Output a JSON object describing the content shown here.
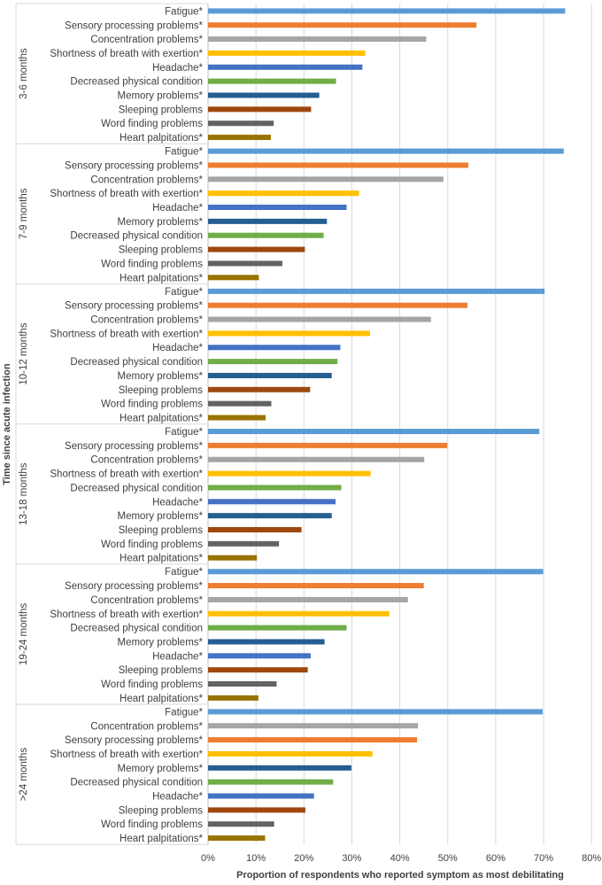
{
  "chart_data": {
    "type": "bar",
    "orientation": "horizontal",
    "xlabel": "Proportion of respondents who reported symptom as most debilitating",
    "ylabel": "Time since acute infection",
    "xlim": [
      0,
      80
    ],
    "xticks": [
      "0%",
      "10%",
      "20%",
      "30%",
      "40%",
      "50%",
      "60%",
      "70%",
      "80%"
    ],
    "grid": "vertical",
    "colors": {
      "Fatigue*": "#5B9BD5",
      "Sensory processing problems*": "#ED7D31",
      "Concentration problems*": "#A5A5A5",
      "Shortness of breath with exertion*": "#FFC000",
      "Headache*": "#4472C4",
      "Decreased physical condition": "#70AD47",
      "Memory problems*": "#255E91",
      "Sleeping problems": "#9E480E",
      "Word finding problems": "#636363",
      "Heart palpitations*": "#997300"
    },
    "groups": [
      {
        "name": "3-6 months",
        "items": [
          {
            "label": "Fatigue*",
            "value": 74.5
          },
          {
            "label": "Sensory processing problems*",
            "value": 56
          },
          {
            "label": "Concentration problems*",
            "value": 45.5
          },
          {
            "label": "Shortness of breath with exertion*",
            "value": 32.8
          },
          {
            "label": "Headache*",
            "value": 32.2
          },
          {
            "label": "Decreased physical condition",
            "value": 26.7
          },
          {
            "label": "Memory problems*",
            "value": 23.2
          },
          {
            "label": "Sleeping problems",
            "value": 21.5
          },
          {
            "label": "Word finding problems",
            "value": 13.7
          },
          {
            "label": "Heart palpitations*",
            "value": 13.1
          }
        ]
      },
      {
        "name": "7-9 months",
        "items": [
          {
            "label": "Fatigue*",
            "value": 74.2
          },
          {
            "label": "Sensory processing problems*",
            "value": 54.3
          },
          {
            "label": "Concentration problems*",
            "value": 49.1
          },
          {
            "label": "Shortness of breath with exertion*",
            "value": 31.5
          },
          {
            "label": "Headache*",
            "value": 28.9
          },
          {
            "label": "Memory problems*",
            "value": 24.8
          },
          {
            "label": "Decreased physical condition",
            "value": 24.1
          },
          {
            "label": "Sleeping problems",
            "value": 20.2
          },
          {
            "label": "Word finding problems",
            "value": 15.5
          },
          {
            "label": "Heart palpitations*",
            "value": 10.6
          }
        ]
      },
      {
        "name": "10-12 months",
        "items": [
          {
            "label": "Fatigue*",
            "value": 70.2
          },
          {
            "label": "Sensory processing problems*",
            "value": 54.1
          },
          {
            "label": "Concentration problems*",
            "value": 46.5
          },
          {
            "label": "Shortness of breath with exertion*",
            "value": 33.8
          },
          {
            "label": "Headache*",
            "value": 27.6
          },
          {
            "label": "Decreased physical condition",
            "value": 27
          },
          {
            "label": "Memory problems*",
            "value": 25.8
          },
          {
            "label": "Sleeping problems",
            "value": 21.3
          },
          {
            "label": "Word finding problems",
            "value": 13.2
          },
          {
            "label": "Heart palpitations*",
            "value": 12
          }
        ]
      },
      {
        "name": "13-18 months",
        "items": [
          {
            "label": "Fatigue*",
            "value": 69.1
          },
          {
            "label": "Sensory processing problems*",
            "value": 49.9
          },
          {
            "label": "Concentration problems*",
            "value": 45.1
          },
          {
            "label": "Shortness of breath with exertion*",
            "value": 33.9
          },
          {
            "label": "Decreased physical condition",
            "value": 27.8
          },
          {
            "label": "Headache*",
            "value": 26.6
          },
          {
            "label": "Memory problems*",
            "value": 25.8
          },
          {
            "label": "Sleeping problems",
            "value": 19.5
          },
          {
            "label": "Word finding problems",
            "value": 14.8
          },
          {
            "label": "Heart palpitations*",
            "value": 10.2
          }
        ]
      },
      {
        "name": "19-24 months",
        "items": [
          {
            "label": "Fatigue*",
            "value": 69.9
          },
          {
            "label": "Sensory processing problems*",
            "value": 45
          },
          {
            "label": "Concentration problems*",
            "value": 41.7
          },
          {
            "label": "Shortness of breath with exertion*",
            "value": 37.8
          },
          {
            "label": "Decreased physical condition",
            "value": 28.9
          },
          {
            "label": "Memory problems*",
            "value": 24.3
          },
          {
            "label": "Headache*",
            "value": 21.4
          },
          {
            "label": "Sleeping problems",
            "value": 20.8
          },
          {
            "label": "Word finding problems",
            "value": 14.3
          },
          {
            "label": "Heart palpitations*",
            "value": 10.5
          }
        ]
      },
      {
        "name": ">24 months",
        "items": [
          {
            "label": "Fatigue*",
            "value": 69.8
          },
          {
            "label": "Concentration problems*",
            "value": 43.8
          },
          {
            "label": "Sensory processing problems*",
            "value": 43.6
          },
          {
            "label": "Shortness of breath with exertion*",
            "value": 34.3
          },
          {
            "label": "Memory problems*",
            "value": 29.9
          },
          {
            "label": "Decreased physical condition",
            "value": 26.1
          },
          {
            "label": "Headache*",
            "value": 22.1
          },
          {
            "label": "Sleeping problems",
            "value": 20.3
          },
          {
            "label": "Word finding problems",
            "value": 13.8
          },
          {
            "label": "Heart palpitations*",
            "value": 11.9
          }
        ]
      }
    ]
  }
}
